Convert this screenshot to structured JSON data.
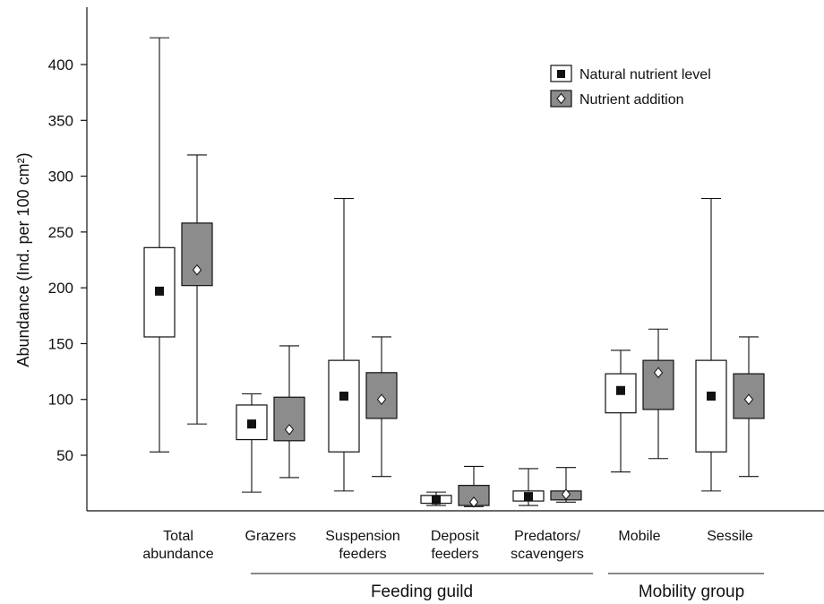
{
  "chart_data": {
    "type": "boxplot",
    "ylabel": "Abundance (Ind. per 100 cm²)",
    "ylim": [
      0,
      440
    ],
    "yticks": [
      50,
      100,
      150,
      200,
      250,
      300,
      350,
      400
    ],
    "grid": false,
    "legend_position": "top-right",
    "legend": [
      {
        "name": "Natural nutrient level",
        "marker": "square",
        "box_fill": "#ffffff",
        "marker_fill": "#111111"
      },
      {
        "name": "Nutrient addition",
        "marker": "diamond",
        "box_fill": "#8c8c8c",
        "marker_fill": "#ffffff"
      }
    ],
    "categories": [
      {
        "lines": [
          "Total",
          "abundance"
        ]
      },
      {
        "lines": [
          "Grazers"
        ]
      },
      {
        "lines": [
          "Suspension",
          "feeders"
        ]
      },
      {
        "lines": [
          "Deposit",
          "feeders"
        ]
      },
      {
        "lines": [
          "Predators/",
          "scavengers"
        ]
      },
      {
        "lines": [
          "Mobile"
        ]
      },
      {
        "lines": [
          "Sessile"
        ]
      }
    ],
    "groups": [
      {
        "label": "Feeding guild",
        "from": 1,
        "to": 4
      },
      {
        "label": "Mobility group",
        "from": 5,
        "to": 6
      }
    ],
    "series": [
      {
        "name": "Natural nutrient level",
        "boxes": [
          {
            "min": 53,
            "q1": 156,
            "center": 197,
            "q3": 236,
            "max": 424
          },
          {
            "min": 17,
            "q1": 64,
            "center": 78,
            "q3": 95,
            "max": 105
          },
          {
            "min": 18,
            "q1": 53,
            "center": 103,
            "q3": 135,
            "max": 280
          },
          {
            "min": 5,
            "q1": 7,
            "center": 10,
            "q3": 14,
            "max": 17
          },
          {
            "min": 5,
            "q1": 9,
            "center": 13,
            "q3": 18,
            "max": 38
          },
          {
            "min": 35,
            "q1": 88,
            "center": 108,
            "q3": 123,
            "max": 144
          },
          {
            "min": 18,
            "q1": 53,
            "center": 103,
            "q3": 135,
            "max": 280
          }
        ]
      },
      {
        "name": "Nutrient addition",
        "boxes": [
          {
            "min": 78,
            "q1": 202,
            "center": 216,
            "q3": 258,
            "max": 319
          },
          {
            "min": 30,
            "q1": 63,
            "center": 73,
            "q3": 102,
            "max": 148
          },
          {
            "min": 31,
            "q1": 83,
            "center": 100,
            "q3": 124,
            "max": 156
          },
          {
            "min": 4,
            "q1": 5,
            "center": 8,
            "q3": 23,
            "max": 40
          },
          {
            "min": 8,
            "q1": 10,
            "center": 15,
            "q3": 18,
            "max": 39
          },
          {
            "min": 47,
            "q1": 91,
            "center": 124,
            "q3": 135,
            "max": 163
          },
          {
            "min": 31,
            "q1": 83,
            "center": 100,
            "q3": 123,
            "max": 156
          }
        ]
      }
    ]
  }
}
